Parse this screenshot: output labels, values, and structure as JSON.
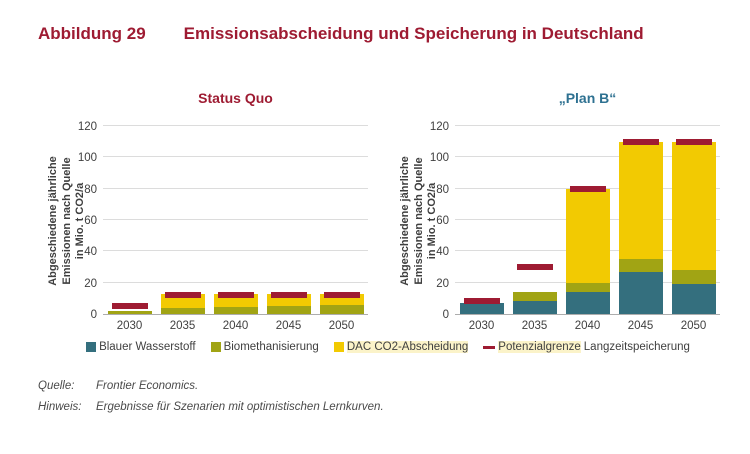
{
  "header": {
    "label": "Abbildung 29",
    "title": "Emissionsabscheidung und Speicherung in Deutschland"
  },
  "colors": {
    "maroon": "#9E1B32",
    "steel_blue": "#2E7191",
    "teal": "#346F7E",
    "olive": "#A1A414",
    "yellow": "#F2CA02",
    "legend_highlight": "#FBF3C9",
    "gridline": "#DCDCDC",
    "axis_text": "#404040"
  },
  "chart_data": [
    {
      "type": "bar",
      "stacked": true,
      "title": "Status Quo",
      "title_color": "#9E1B32",
      "ylabel": "Abgeschiedene jährliche Emissionen nach Quelle in Mio. t CO2/a",
      "ylabel_lines": [
        "Abgeschiedene jährliche",
        "Emissionen nach Quelle",
        "in Mio. t CO2/a"
      ],
      "xlabel": "",
      "ylim": [
        0,
        120
      ],
      "yticks": [
        0,
        20,
        40,
        60,
        80,
        100,
        120
      ],
      "grid": true,
      "categories": [
        "2030",
        "2035",
        "2040",
        "2045",
        "2050"
      ],
      "series": [
        {
          "name": "Blauer Wasserstoff",
          "color": "#346F7E",
          "values": [
            0,
            0,
            0,
            0,
            0
          ]
        },
        {
          "name": "Biomethanisierung",
          "color": "#A1A414",
          "values": [
            2,
            4,
            4.5,
            5,
            6
          ]
        },
        {
          "name": "DAC CO2-Abscheidung",
          "color": "#F2CA02",
          "values": [
            0,
            8.5,
            8,
            7.5,
            6.5
          ]
        }
      ],
      "limit_series": {
        "name": "Potenzialgrenze Langzeitspeicherung",
        "color": "#9E1B32",
        "values": [
          5,
          12,
          12,
          12,
          12
        ]
      }
    },
    {
      "type": "bar",
      "stacked": true,
      "title": "„Plan B“",
      "title_color": "#2E7191",
      "ylabel": "Abgeschiedene jährliche Emissionen nach Quelle in Mio. t CO2/a",
      "ylabel_lines": [
        "Abgeschiedene jährliche",
        "Emissionen nach Quelle",
        "in Mio. t CO2/a"
      ],
      "xlabel": "",
      "ylim": [
        0,
        120
      ],
      "yticks": [
        0,
        20,
        40,
        60,
        80,
        100,
        120
      ],
      "grid": true,
      "categories": [
        "2030",
        "2035",
        "2040",
        "2045",
        "2050"
      ],
      "series": [
        {
          "name": "Blauer Wasserstoff",
          "color": "#346F7E",
          "values": [
            7,
            8,
            14,
            27,
            19
          ]
        },
        {
          "name": "Biomethanisierung",
          "color": "#A1A414",
          "values": [
            0,
            6,
            6,
            8,
            9
          ]
        },
        {
          "name": "DAC CO2-Abscheidung",
          "color": "#F2CA02",
          "values": [
            0,
            0,
            60,
            75,
            82
          ]
        }
      ],
      "limit_series": {
        "name": "Potenzialgrenze Langzeitspeicherung",
        "color": "#9E1B32",
        "values": [
          8,
          30,
          80,
          110,
          110
        ]
      }
    }
  ],
  "legend": {
    "items": [
      {
        "swatch": "square",
        "color": "#346F7E",
        "parts": [
          {
            "text": "Blauer Wasserstoff",
            "highlight": false
          }
        ]
      },
      {
        "swatch": "square",
        "color": "#A1A414",
        "parts": [
          {
            "text": "Biomethanisierung",
            "highlight": false
          }
        ]
      },
      {
        "swatch": "square",
        "color": "#F2CA02",
        "parts": [
          {
            "text": "DAC CO2-Abscheidung",
            "highlight": true
          }
        ]
      },
      {
        "swatch": "dash",
        "color": "#9E1B32",
        "parts": [
          {
            "text": "Potenzialgrenze",
            "highlight": true
          },
          {
            "text": " Langzeitspeicherung",
            "highlight": false
          }
        ]
      }
    ]
  },
  "footer": {
    "rows": [
      {
        "label": "Quelle:",
        "text": "Frontier Economics."
      },
      {
        "label": "Hinweis:",
        "text": "Ergebnisse für Szenarien mit optimistischen Lernkurven."
      }
    ]
  }
}
